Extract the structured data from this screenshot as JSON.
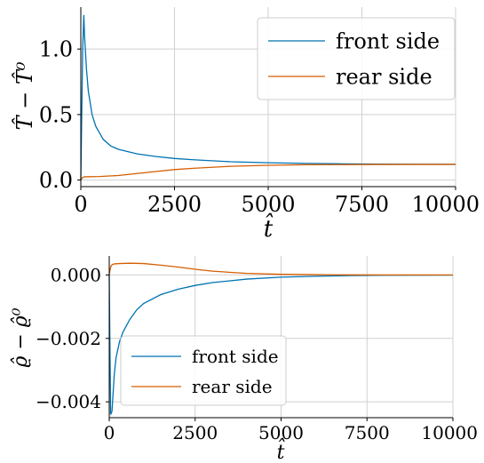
{
  "chart_data": [
    {
      "type": "line",
      "xlabel": "t̂",
      "ylabel": "T̂ − T̂⁰",
      "xlim": [
        0,
        10000
      ],
      "ylim": [
        -0.05,
        1.32
      ],
      "xticks": [
        0,
        2500,
        5000,
        7500,
        10000
      ],
      "xtick_labels": [
        "0",
        "2500",
        "5000",
        "7500",
        "10000"
      ],
      "yticks": [
        0.0,
        0.5,
        1.0
      ],
      "ytick_labels": [
        "0.0",
        "0.5",
        "1.0"
      ],
      "grid": true,
      "legend_position": "top-right",
      "series": [
        {
          "name": "front side",
          "color": "#0072b2",
          "x": [
            0,
            20,
            50,
            80,
            100,
            150,
            200,
            300,
            400,
            600,
            800,
            1000,
            1500,
            2000,
            2500,
            3000,
            4000,
            5000,
            6000,
            7000,
            8000,
            9000,
            10000
          ],
          "y": [
            0.0,
            0.4,
            1.0,
            1.26,
            1.1,
            0.85,
            0.68,
            0.5,
            0.41,
            0.31,
            0.26,
            0.235,
            0.2,
            0.18,
            0.165,
            0.155,
            0.14,
            0.132,
            0.127,
            0.124,
            0.122,
            0.121,
            0.12
          ]
        },
        {
          "name": "rear side",
          "color": "#d55e00",
          "x": [
            0,
            50,
            100,
            500,
            1000,
            1500,
            2000,
            2500,
            3000,
            4000,
            5000,
            6000,
            7000,
            8000,
            10000
          ],
          "y": [
            0.0,
            0.02,
            0.025,
            0.027,
            0.035,
            0.05,
            0.065,
            0.08,
            0.09,
            0.105,
            0.113,
            0.117,
            0.118,
            0.119,
            0.12
          ]
        }
      ]
    },
    {
      "type": "line",
      "xlabel": "t̂",
      "ylabel": "ϱ̂ − ϱ̂⁰",
      "xlim": [
        0,
        10000
      ],
      "ylim": [
        -0.0045,
        0.0006
      ],
      "xticks": [
        0,
        2500,
        5000,
        7500,
        10000
      ],
      "xtick_labels": [
        "0",
        "2500",
        "5000",
        "7500",
        "10000"
      ],
      "yticks": [
        0.0,
        -0.002,
        -0.004
      ],
      "ytick_labels": [
        "0.000",
        "−0.002",
        "−0.004"
      ],
      "grid": true,
      "legend_position": "lower-left",
      "series": [
        {
          "name": "front side",
          "color": "#0072b2",
          "x": [
            0,
            40,
            80,
            120,
            150,
            200,
            300,
            400,
            600,
            800,
            1000,
            1500,
            2000,
            2500,
            3000,
            4000,
            5000,
            6000,
            7000,
            8000,
            10000
          ],
          "y": [
            0.0,
            -0.0044,
            -0.0043,
            -0.0036,
            -0.0031,
            -0.0026,
            -0.0021,
            -0.0018,
            -0.0014,
            -0.0011,
            -0.0009,
            -0.00062,
            -0.00045,
            -0.00033,
            -0.00024,
            -0.00013,
            -7e-05,
            -4e-05,
            -2e-05,
            -1e-05,
            -5e-06
          ]
        },
        {
          "name": "rear side",
          "color": "#d55e00",
          "x": [
            0,
            30,
            60,
            100,
            150,
            300,
            600,
            1000,
            1500,
            2000,
            2500,
            3000,
            4000,
            5000,
            6000,
            7000,
            8000,
            10000
          ],
          "y": [
            0.0,
            0.0002,
            0.0003,
            0.00033,
            0.00035,
            0.00036,
            0.00037,
            0.00036,
            0.00031,
            0.00025,
            0.00018,
            0.00012,
            5e-05,
            2e-05,
            1e-05,
            3e-06,
            0.0,
            0.0
          ]
        }
      ]
    }
  ]
}
